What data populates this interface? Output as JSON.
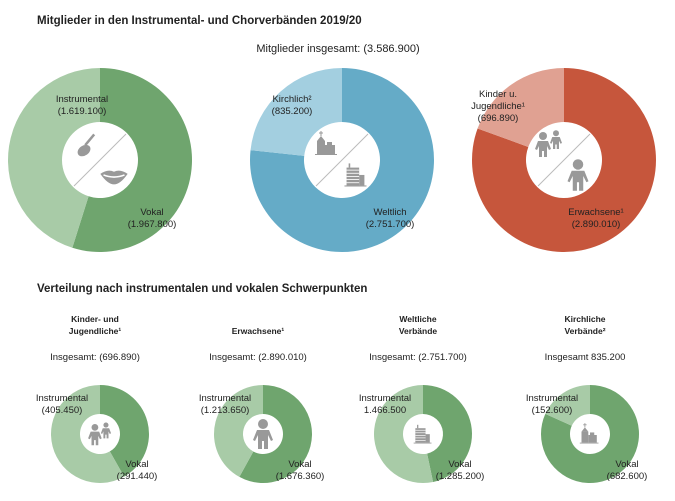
{
  "title": "Mitglieder in den Instrumental- und Chorverbänden 2019/20",
  "total_label": "Mitglieder insgesamt: (3.586.900)",
  "section2_title": "Verteilung nach instrumentalen und vokalen Schwerpunkten",
  "colors": {
    "green_dark": "#6fa56e",
    "green_light": "#a8cba7",
    "blue_dark": "#65abc7",
    "blue_light": "#a3cfe0",
    "red_dark": "#c6563c",
    "red_light": "#e0a192",
    "icon": "#999999"
  },
  "chart_data": [
    {
      "type": "pie",
      "donut": true,
      "slices": [
        {
          "name": "Vokal",
          "value_label": "(1.967.800)",
          "value": 1967800,
          "color": "#6fa56e"
        },
        {
          "name": "Instrumental",
          "value_label": "(1.619.100)",
          "value": 1619100,
          "color": "#a8cba7"
        }
      ],
      "icons": [
        "violin-icon",
        "lips-icon"
      ]
    },
    {
      "type": "pie",
      "donut": true,
      "slices": [
        {
          "name": "Weltlich",
          "value_label": "(2.751.700)",
          "value": 2751700,
          "color": "#65abc7"
        },
        {
          "name": "Kirchlich²",
          "value_label": "(835.200)",
          "value": 835200,
          "color": "#a3cfe0"
        }
      ],
      "icons": [
        "church-icon",
        "building-icon"
      ]
    },
    {
      "type": "pie",
      "donut": true,
      "slices": [
        {
          "name": "Erwachsene¹",
          "value_label": "(2.890.010)",
          "value": 2890010,
          "color": "#c6563c"
        },
        {
          "name": "Kinder u. Jugendliche¹",
          "value_label": "(696.890)",
          "value": 696890,
          "color": "#e0a192"
        }
      ],
      "icons": [
        "children-icon",
        "adult-icon"
      ]
    },
    {
      "type": "pie",
      "donut": true,
      "title": [
        "Kinder- und",
        "Jugendliche¹"
      ],
      "total": "Insgesamt: (696.890)",
      "slices": [
        {
          "name": "Vokal",
          "value_label": "(291.440)",
          "value": 291440,
          "color": "#6fa56e"
        },
        {
          "name": "Instrumental",
          "value_label": "(405.450)",
          "value": 405450,
          "color": "#a8cba7"
        }
      ],
      "icons": [
        "children-icon"
      ]
    },
    {
      "type": "pie",
      "donut": true,
      "title": [
        "",
        "Erwachsene¹"
      ],
      "total": "Insgesamt: (2.890.010)",
      "slices": [
        {
          "name": "Vokal",
          "value_label": "(1.676.360)",
          "value": 1676360,
          "color": "#6fa56e"
        },
        {
          "name": "Instrumental",
          "value_label": "(1.213.650)",
          "value": 1213650,
          "color": "#a8cba7"
        }
      ],
      "icons": [
        "adult-icon"
      ]
    },
    {
      "type": "pie",
      "donut": true,
      "title": [
        "Weltliche",
        "Verbände"
      ],
      "total": "Insgesamt: (2.751.700)",
      "slices": [
        {
          "name": "Vokal",
          "value_label": "(1.285.200)",
          "value": 1285200,
          "color": "#6fa56e"
        },
        {
          "name": "Instrumental",
          "value_label": "1.466.500",
          "value": 1466500,
          "color": "#a8cba7"
        }
      ],
      "icons": [
        "building-icon"
      ]
    },
    {
      "type": "pie",
      "donut": true,
      "title": [
        "Kirchliche",
        "Verbände²"
      ],
      "total": "Insgesamt 835.200",
      "slices": [
        {
          "name": "Vokal",
          "value_label": "(682.600)",
          "value": 682600,
          "color": "#6fa56e"
        },
        {
          "name": "Instrumental",
          "value_label": "(152.600)",
          "value": 152600,
          "color": "#a8cba7"
        }
      ],
      "icons": [
        "church-icon"
      ]
    }
  ]
}
